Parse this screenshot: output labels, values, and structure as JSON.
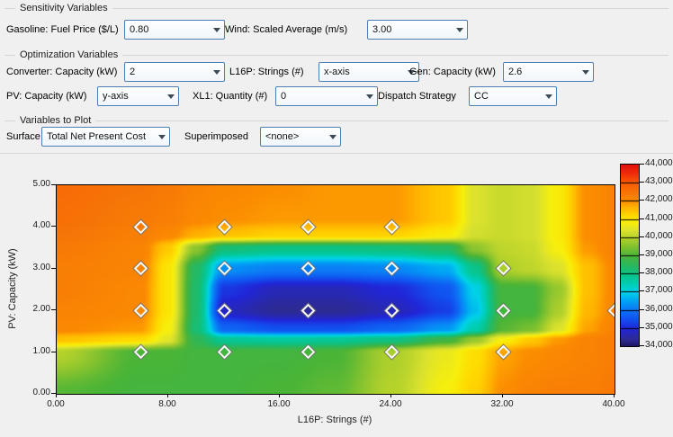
{
  "groups": {
    "sensitivity": {
      "title": "Sensitivity Variables"
    },
    "optimization": {
      "title": "Optimization Variables"
    },
    "plot_vars": {
      "title": "Variables to Plot"
    }
  },
  "controls": {
    "gasoline": {
      "label": "Gasoline: Fuel Price ($/L)",
      "value": "0.80"
    },
    "wind": {
      "label": "Wind: Scaled Average (m/s)",
      "value": "3.00"
    },
    "converter": {
      "label": "Converter: Capacity (kW)",
      "value": "2"
    },
    "l16p": {
      "label": "L16P: Strings (#)",
      "value": "x-axis"
    },
    "gen": {
      "label": "Gen: Capacity (kW)",
      "value": "2.6"
    },
    "pv": {
      "label": "PV: Capacity (kW)",
      "value": "y-axis"
    },
    "xl1": {
      "label": "XL1: Quantity (#)",
      "value": "0"
    },
    "dispatch": {
      "label": "Dispatch Strategy",
      "value": "CC"
    },
    "surface": {
      "label": "Surface",
      "value": "Total Net Present Cost"
    },
    "superimposed": {
      "label": "Superimposed",
      "value": "<none>"
    }
  },
  "chart_data": {
    "type": "heatmap",
    "surface_variable": "Total Net Present Cost",
    "xlabel": "L16P: Strings (#)",
    "ylabel": "PV: Capacity (kW)",
    "xlim": [
      0,
      40
    ],
    "ylim": [
      0,
      5
    ],
    "x_tick_values": [
      0,
      8,
      16,
      24,
      32,
      40
    ],
    "x_tick_labels": [
      "0.00",
      "8.00",
      "16.00",
      "24.00",
      "32.00",
      "40.00"
    ],
    "y_tick_values": [
      0,
      1,
      2,
      3,
      4,
      5
    ],
    "y_tick_labels": [
      "0.00",
      "1.00",
      "2.00",
      "3.00",
      "4.00",
      "5.00"
    ],
    "colorbar": {
      "min": 34000,
      "max": 44000,
      "tick_step": 1000,
      "tick_labels": [
        "44,000",
        "43,000",
        "42,000",
        "41,000",
        "40,000",
        "39,000",
        "38,000",
        "37,000",
        "36,000",
        "35,000",
        "34,000"
      ]
    },
    "colormap": [
      {
        "v": 34000,
        "c": "#1b1464"
      },
      {
        "v": 34400,
        "c": "#2d2a94"
      },
      {
        "v": 35000,
        "c": "#2126d8"
      },
      {
        "v": 35500,
        "c": "#1150f0"
      },
      {
        "v": 36000,
        "c": "#0d74f5"
      },
      {
        "v": 36500,
        "c": "#00a2f5"
      },
      {
        "v": 37000,
        "c": "#00d2e8"
      },
      {
        "v": 37500,
        "c": "#00cdae"
      },
      {
        "v": 38000,
        "c": "#0cc284"
      },
      {
        "v": 38500,
        "c": "#2bb75c"
      },
      {
        "v": 39000,
        "c": "#4ab437"
      },
      {
        "v": 39500,
        "c": "#83c22f"
      },
      {
        "v": 40000,
        "c": "#b5d22b"
      },
      {
        "v": 40400,
        "c": "#dce22e"
      },
      {
        "v": 40800,
        "c": "#f7ef0c"
      },
      {
        "v": 41200,
        "c": "#ffd900"
      },
      {
        "v": 41700,
        "c": "#ffb000"
      },
      {
        "v": 42000,
        "c": "#fb8d01"
      },
      {
        "v": 42500,
        "c": "#f67507"
      },
      {
        "v": 43000,
        "c": "#fa5c03"
      },
      {
        "v": 43500,
        "c": "#ef2d0a"
      },
      {
        "v": 44000,
        "c": "#e2100c"
      }
    ],
    "grid": {
      "xs": [
        0,
        6,
        8,
        10,
        12,
        16,
        20,
        24,
        28,
        30,
        32,
        34,
        36,
        38,
        40
      ],
      "ys_top_to_bottom": [
        5.0,
        4.2,
        3.8,
        3.5,
        3.0,
        2.5,
        2.0,
        1.55,
        1.3,
        1.0,
        0.0
      ],
      "values": [
        [
          42700,
          42500,
          42400,
          42200,
          42100,
          42000,
          41900,
          41900,
          41400,
          40400,
          40200,
          40300,
          40900,
          42000,
          42200
        ],
        [
          42600,
          42400,
          42300,
          42100,
          42000,
          41900,
          41900,
          41900,
          41400,
          40400,
          40200,
          40300,
          40900,
          42000,
          42200
        ],
        [
          42500,
          42300,
          42100,
          41700,
          41500,
          41300,
          41300,
          41300,
          40900,
          40300,
          40200,
          40300,
          40900,
          42000,
          42200
        ],
        [
          42400,
          42200,
          41400,
          39600,
          38200,
          38000,
          38000,
          38100,
          38400,
          39600,
          40100,
          40200,
          40800,
          41900,
          42200
        ],
        [
          42300,
          42200,
          41000,
          38400,
          36300,
          36100,
          36100,
          36200,
          36600,
          37900,
          39900,
          40100,
          40400,
          41500,
          42100
        ],
        [
          42300,
          42100,
          41000,
          38300,
          35200,
          34700,
          34700,
          35000,
          35600,
          37000,
          38900,
          38900,
          39700,
          41500,
          42100
        ],
        [
          42200,
          42100,
          41000,
          38300,
          34800,
          34400,
          34400,
          34700,
          35300,
          36800,
          38900,
          38900,
          39900,
          41600,
          42100
        ],
        [
          42100,
          41900,
          40800,
          38200,
          35800,
          35500,
          35500,
          35800,
          36400,
          37500,
          39100,
          39400,
          40400,
          41800,
          42200
        ],
        [
          41500,
          41200,
          40500,
          38600,
          37800,
          37700,
          37800,
          38000,
          38800,
          39700,
          40800,
          41400,
          41900,
          42200,
          42300
        ],
        [
          40000,
          39000,
          39000,
          38900,
          38900,
          38900,
          39000,
          39900,
          40600,
          41100,
          41800,
          42000,
          42100,
          42200,
          42300
        ],
        [
          39100,
          38900,
          38900,
          38900,
          38900,
          39000,
          39200,
          40000,
          40800,
          41300,
          42000,
          42200,
          42300,
          42300,
          42400
        ]
      ]
    },
    "markers": [
      [
        6,
        4
      ],
      [
        12,
        4
      ],
      [
        18,
        4
      ],
      [
        24,
        4
      ],
      [
        6,
        3
      ],
      [
        12,
        3
      ],
      [
        18,
        3
      ],
      [
        24,
        3
      ],
      [
        32,
        3
      ],
      [
        6,
        2
      ],
      [
        12,
        2
      ],
      [
        18,
        2
      ],
      [
        24,
        2
      ],
      [
        32,
        2
      ],
      [
        40,
        2
      ],
      [
        6,
        1
      ],
      [
        12,
        1
      ],
      [
        18,
        1
      ],
      [
        24,
        1
      ],
      [
        32,
        1
      ]
    ]
  }
}
